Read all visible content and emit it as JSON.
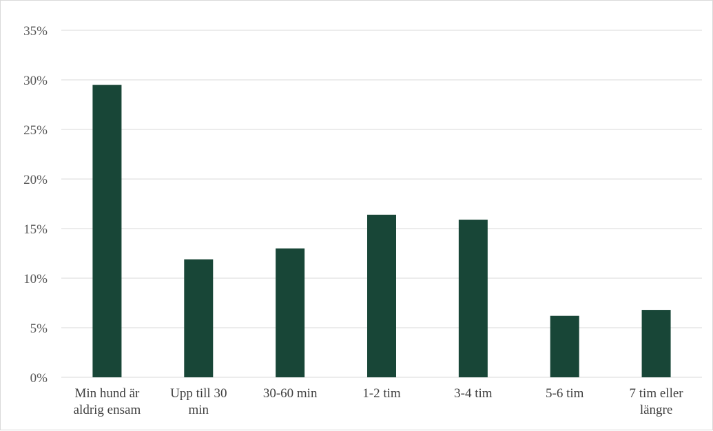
{
  "chart_data": {
    "type": "bar",
    "categories": [
      [
        "Min hund är",
        "aldrig ensam"
      ],
      [
        "Upp till 30",
        "min"
      ],
      [
        "30-60 min"
      ],
      [
        "1-2 tim"
      ],
      [
        "3-4 tim"
      ],
      [
        "5-6 tim"
      ],
      [
        "7 tim eller",
        "längre"
      ]
    ],
    "values": [
      29.5,
      11.9,
      13.0,
      16.4,
      15.9,
      6.2,
      6.8
    ],
    "y_ticks": [
      "0%",
      "5%",
      "10%",
      "15%",
      "20%",
      "25%",
      "30%",
      "35%"
    ],
    "ylim": [
      0,
      35
    ],
    "grid": true,
    "bar_color": "#184637",
    "grid_color": "#d9d9d9"
  }
}
